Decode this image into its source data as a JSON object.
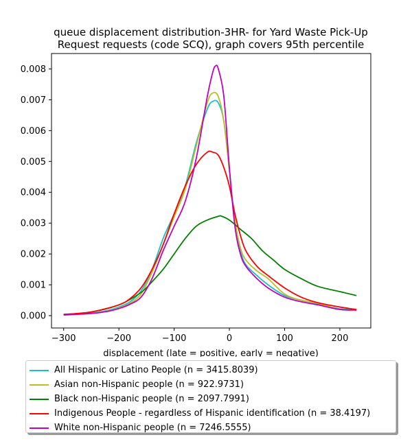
{
  "chart_data": {
    "type": "line",
    "title_lines": [
      "queue displacement distribution-3HR-  for Yard Waste Pick-Up",
      "Request  requests (code SCQ), graph covers 95th percentile"
    ],
    "xlabel": "displacement (late = positive, early = negative)",
    "ylabel": "",
    "xlim": [
      -322,
      256
    ],
    "ylim": [
      -0.0004,
      0.0085
    ],
    "xticks": [
      -300,
      -200,
      -100,
      0,
      100,
      200
    ],
    "xtick_labels": [
      "−300",
      "−200",
      "−100",
      "0",
      "100",
      "200"
    ],
    "yticks": [
      0.0,
      0.001,
      0.002,
      0.003,
      0.004,
      0.005,
      0.006,
      0.007,
      0.008
    ],
    "ytick_labels": [
      "0.000",
      "0.001",
      "0.002",
      "0.003",
      "0.004",
      "0.005",
      "0.006",
      "0.007",
      "0.008"
    ],
    "grid": false,
    "legend_position": "below plot",
    "series": [
      {
        "name": "All Hispanic or Latino People (n = 3415.8039)",
        "color": "#17becf",
        "x": [
          -300,
          -250,
          -220,
          -200,
          -180,
          -160,
          -140,
          -120,
          -100,
          -80,
          -60,
          -40,
          -30,
          -20,
          -10,
          0,
          10,
          20,
          30,
          50,
          70,
          100,
          130,
          160,
          200,
          230
        ],
        "y": [
          3e-05,
          8e-05,
          0.00017,
          0.00028,
          0.00045,
          0.0008,
          0.0015,
          0.0025,
          0.0033,
          0.0042,
          0.0056,
          0.0067,
          0.00695,
          0.0069,
          0.0063,
          0.0047,
          0.003,
          0.0021,
          0.00165,
          0.0013,
          0.001,
          0.00065,
          0.0005,
          0.00038,
          0.00022,
          0.0002
        ]
      },
      {
        "name": "Asian non-Hispanic people (n = 922.9731)",
        "color": "#bcbd22",
        "x": [
          -300,
          -250,
          -220,
          -200,
          -180,
          -160,
          -140,
          -120,
          -100,
          -80,
          -60,
          -40,
          -30,
          -20,
          -10,
          0,
          10,
          20,
          30,
          50,
          70,
          100,
          130,
          160,
          200,
          230
        ],
        "y": [
          3e-05,
          7e-05,
          0.00015,
          0.00025,
          0.0004,
          0.0007,
          0.0014,
          0.0023,
          0.0032,
          0.0041,
          0.0055,
          0.0069,
          0.00722,
          0.0071,
          0.0063,
          0.0047,
          0.0031,
          0.0022,
          0.0018,
          0.00145,
          0.0012,
          0.0007,
          0.0005,
          0.0004,
          0.0002,
          0.00019
        ]
      },
      {
        "name": "Black non-Hispanic people (n = 2097.7991)",
        "color": "#008000",
        "x": [
          -300,
          -250,
          -200,
          -160,
          -140,
          -120,
          -100,
          -80,
          -60,
          -40,
          -20,
          -15,
          0,
          20,
          40,
          60,
          80,
          100,
          130,
          160,
          200,
          230
        ],
        "y": [
          4e-05,
          0.00012,
          0.00035,
          0.00075,
          0.0011,
          0.0015,
          0.002,
          0.0025,
          0.0029,
          0.0031,
          0.00322,
          0.00323,
          0.0031,
          0.0028,
          0.0025,
          0.0021,
          0.0018,
          0.0015,
          0.0012,
          0.00095,
          0.00078,
          0.00065
        ]
      },
      {
        "name": "Indigenous People - regardless of Hispanic identification (n = 38.4197)",
        "color": "#ff0000",
        "x": [
          -300,
          -250,
          -200,
          -180,
          -160,
          -140,
          -120,
          -100,
          -80,
          -60,
          -40,
          -30,
          -20,
          -10,
          0,
          10,
          20,
          30,
          50,
          70,
          100,
          130,
          160,
          200,
          230
        ],
        "y": [
          4e-05,
          0.00012,
          0.00035,
          0.00055,
          0.0009,
          0.0015,
          0.0023,
          0.0033,
          0.0042,
          0.0049,
          0.0053,
          0.0053,
          0.0052,
          0.0048,
          0.0042,
          0.0033,
          0.0026,
          0.0021,
          0.0016,
          0.0013,
          0.0009,
          0.0006,
          0.00042,
          0.00028,
          0.0002
        ]
      },
      {
        "name": "White non-Hispanic people (n = 7246.5555)",
        "color": "#bf00bf",
        "x": [
          -300,
          -250,
          -220,
          -200,
          -180,
          -160,
          -140,
          -120,
          -100,
          -80,
          -60,
          -40,
          -30,
          -25,
          -20,
          -10,
          0,
          10,
          20,
          30,
          50,
          70,
          100,
          130,
          160,
          200,
          230
        ],
        "y": [
          2e-05,
          7e-05,
          0.00014,
          0.00023,
          0.00037,
          0.0006,
          0.0012,
          0.0021,
          0.0029,
          0.0037,
          0.0051,
          0.0071,
          0.0079,
          0.0081,
          0.008,
          0.0071,
          0.0048,
          0.0029,
          0.002,
          0.0016,
          0.0012,
          0.0009,
          0.0006,
          0.00045,
          0.00035,
          0.0002,
          0.00018
        ]
      }
    ]
  }
}
